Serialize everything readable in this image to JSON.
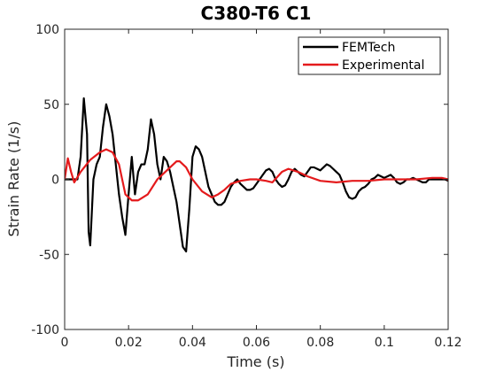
{
  "chart_data": {
    "type": "line",
    "title": "C380-T6 C1",
    "xlabel": "Time (s)",
    "ylabel": "Strain Rate (1/s)",
    "xlim": [
      0,
      0.12
    ],
    "ylim": [
      -100,
      100
    ],
    "xticks": [
      0,
      0.02,
      0.04,
      0.06,
      0.08,
      0.1,
      0.12
    ],
    "xtick_labels": [
      "0",
      "0.02",
      "0.04",
      "0.06",
      "0.08",
      "0.1",
      "0.12"
    ],
    "yticks": [
      -100,
      -50,
      0,
      50,
      100
    ],
    "ytick_labels": [
      "-100",
      "-50",
      "0",
      "50",
      "100"
    ],
    "grid": false,
    "legend_position": "top-right",
    "series": [
      {
        "name": "FEMTech",
        "color": "#000000",
        "x": [
          0,
          0.002,
          0.004,
          0.005,
          0.006,
          0.007,
          0.0075,
          0.008,
          0.0085,
          0.009,
          0.01,
          0.011,
          0.012,
          0.013,
          0.014,
          0.015,
          0.016,
          0.017,
          0.018,
          0.019,
          0.02,
          0.021,
          0.022,
          0.023,
          0.024,
          0.025,
          0.026,
          0.027,
          0.028,
          0.029,
          0.03,
          0.031,
          0.032,
          0.033,
          0.034,
          0.035,
          0.036,
          0.037,
          0.038,
          0.039,
          0.04,
          0.041,
          0.042,
          0.043,
          0.044,
          0.045,
          0.046,
          0.047,
          0.048,
          0.049,
          0.05,
          0.051,
          0.052,
          0.053,
          0.054,
          0.055,
          0.056,
          0.057,
          0.058,
          0.059,
          0.06,
          0.061,
          0.062,
          0.063,
          0.064,
          0.065,
          0.066,
          0.067,
          0.068,
          0.069,
          0.07,
          0.071,
          0.072,
          0.073,
          0.074,
          0.075,
          0.076,
          0.077,
          0.078,
          0.079,
          0.08,
          0.081,
          0.082,
          0.083,
          0.084,
          0.085,
          0.086,
          0.087,
          0.088,
          0.089,
          0.09,
          0.091,
          0.092,
          0.093,
          0.094,
          0.095,
          0.096,
          0.097,
          0.098,
          0.099,
          0.1,
          0.101,
          0.102,
          0.103,
          0.104,
          0.105,
          0.106,
          0.107,
          0.108,
          0.109,
          0.11,
          0.111,
          0.112,
          0.113,
          0.114,
          0.115,
          0.116,
          0.117,
          0.118,
          0.119,
          0.12
        ],
        "y": [
          0,
          0,
          0,
          15,
          54,
          30,
          -35,
          -44,
          -22,
          0,
          10,
          15,
          35,
          50,
          42,
          30,
          10,
          -10,
          -25,
          -37,
          -10,
          15,
          -10,
          5,
          10,
          10,
          20,
          40,
          30,
          10,
          0,
          15,
          12,
          5,
          -5,
          -15,
          -30,
          -45,
          -48,
          -20,
          15,
          22,
          20,
          15,
          5,
          -5,
          -10,
          -15,
          -17,
          -17,
          -15,
          -10,
          -5,
          -2,
          0,
          -3,
          -5,
          -7,
          -7,
          -6,
          -3,
          0,
          3,
          6,
          7,
          5,
          0,
          -3,
          -5,
          -4,
          0,
          5,
          7,
          5,
          3,
          2,
          5,
          8,
          8,
          7,
          6,
          8,
          10,
          9,
          7,
          5,
          3,
          -2,
          -8,
          -12,
          -13,
          -12,
          -8,
          -6,
          -5,
          -3,
          0,
          1,
          3,
          2,
          1,
          2,
          3,
          1,
          -2,
          -3,
          -2,
          0,
          0,
          1,
          0,
          -1,
          -2,
          -2,
          0,
          0,
          0,
          0,
          0,
          0,
          -1
        ]
      },
      {
        "name": "Experimental",
        "color": "#e41a1c",
        "x": [
          0,
          0.001,
          0.002,
          0.003,
          0.005,
          0.008,
          0.011,
          0.013,
          0.015,
          0.017,
          0.019,
          0.021,
          0.023,
          0.026,
          0.029,
          0.032,
          0.035,
          0.036,
          0.038,
          0.04,
          0.043,
          0.046,
          0.048,
          0.05,
          0.052,
          0.055,
          0.058,
          0.06,
          0.063,
          0.065,
          0.068,
          0.07,
          0.073,
          0.076,
          0.08,
          0.085,
          0.09,
          0.095,
          0.1,
          0.105,
          0.11,
          0.115,
          0.118,
          0.12
        ],
        "y": [
          0,
          14,
          5,
          -2,
          5,
          13,
          18,
          20,
          18,
          10,
          -10,
          -14,
          -14,
          -10,
          0,
          6,
          12,
          12,
          8,
          0,
          -8,
          -12,
          -10,
          -7,
          -3,
          -1,
          0,
          0,
          -1,
          -2,
          5,
          7,
          5,
          2,
          -1,
          -2,
          -1,
          -1,
          0,
          0,
          0,
          1,
          1,
          0
        ]
      }
    ]
  }
}
